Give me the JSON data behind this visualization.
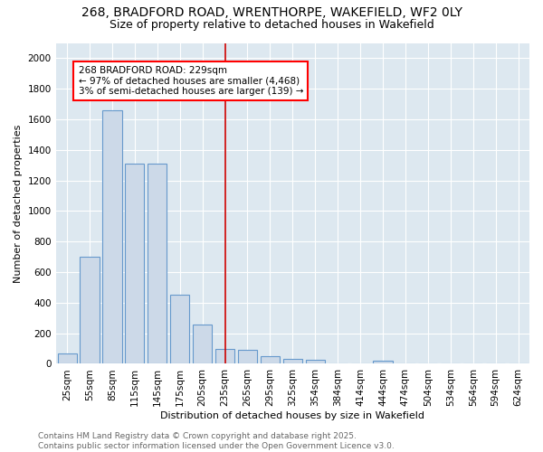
{
  "title_line1": "268, BRADFORD ROAD, WRENTHORPE, WAKEFIELD, WF2 0LY",
  "title_line2": "Size of property relative to detached houses in Wakefield",
  "xlabel": "Distribution of detached houses by size in Wakefield",
  "ylabel": "Number of detached properties",
  "bar_color": "#ccd9e8",
  "bar_edge_color": "#6699cc",
  "background_color": "#dde8f0",
  "grid_color": "#ffffff",
  "bins": [
    "25sqm",
    "55sqm",
    "85sqm",
    "115sqm",
    "145sqm",
    "175sqm",
    "205sqm",
    "235sqm",
    "265sqm",
    "295sqm",
    "325sqm",
    "354sqm",
    "384sqm",
    "414sqm",
    "444sqm",
    "474sqm",
    "504sqm",
    "534sqm",
    "564sqm",
    "594sqm",
    "624sqm"
  ],
  "values": [
    65,
    700,
    1660,
    1310,
    1310,
    450,
    255,
    95,
    90,
    48,
    35,
    28,
    0,
    0,
    22,
    0,
    0,
    0,
    0,
    0,
    0
  ],
  "vline_x": 7,
  "vline_color": "#cc0000",
  "annotation_title": "268 BRADFORD ROAD: 229sqm",
  "annotation_line2": "← 97% of detached houses are smaller (4,468)",
  "annotation_line3": "3% of semi-detached houses are larger (139) →",
  "ylim": [
    0,
    2100
  ],
  "yticks": [
    0,
    200,
    400,
    600,
    800,
    1000,
    1200,
    1400,
    1600,
    1800,
    2000
  ],
  "footer_line1": "Contains HM Land Registry data © Crown copyright and database right 2025.",
  "footer_line2": "Contains public sector information licensed under the Open Government Licence v3.0.",
  "title_fontsize": 10,
  "subtitle_fontsize": 9,
  "axis_label_fontsize": 8,
  "tick_fontsize": 7.5,
  "annotation_fontsize": 7.5,
  "footer_fontsize": 6.5
}
